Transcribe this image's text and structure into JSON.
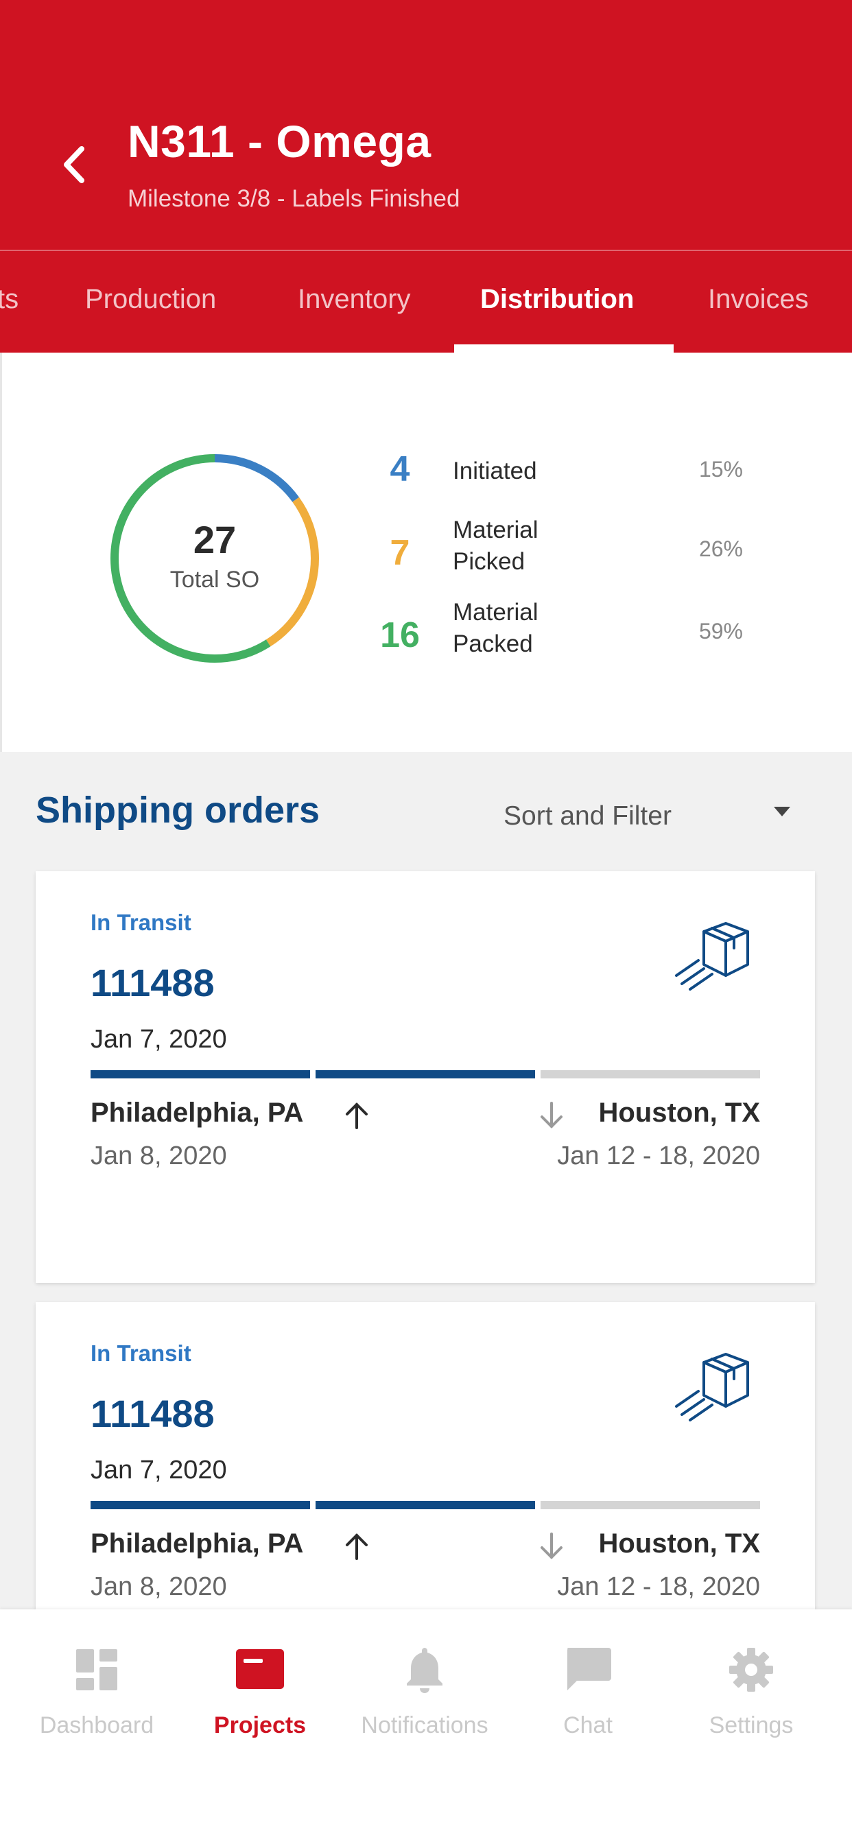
{
  "header": {
    "title": "N311 - Omega",
    "subtitle": "Milestone 3/8 - Labels Finished"
  },
  "tabs": [
    {
      "label": "ts"
    },
    {
      "label": "Production"
    },
    {
      "label": "Inventory"
    },
    {
      "label": "Distribution",
      "active": true
    },
    {
      "label": "Invoices"
    }
  ],
  "summary": {
    "total": "27",
    "total_label": "Total SO",
    "stats": [
      {
        "count": "4",
        "label": "Initiated",
        "percent": "15%",
        "color": "#3a7fc4"
      },
      {
        "count": "7",
        "label_line1": "Material",
        "label_line2": "Picked",
        "percent": "26%",
        "color": "#f0ad3c"
      },
      {
        "count": "16",
        "label_line1": "Material",
        "label_line2": "Packed",
        "percent": "59%",
        "color": "#43b062"
      }
    ]
  },
  "shipping": {
    "title": "Shipping orders",
    "sort_label": "Sort and Filter",
    "orders": [
      {
        "status": "In Transit",
        "id": "111488",
        "date": "Jan 7, 2020",
        "progress_segments_done": 2,
        "progress_segments_total": 3,
        "from_city": "Philadelphia, PA",
        "from_date": "Jan 8, 2020",
        "to_city": "Houston, TX",
        "to_date": "Jan 12 - 18, 2020"
      },
      {
        "status": "In Transit",
        "id": "111488",
        "date": "Jan 7, 2020",
        "progress_segments_done": 2,
        "progress_segments_total": 3,
        "from_city": "Philadelphia, PA",
        "from_date": "Jan 8, 2020",
        "to_city": "Houston, TX",
        "to_date": "Jan 12 - 18, 2020"
      }
    ]
  },
  "bottom_nav": [
    {
      "label": "Dashboard",
      "icon": "dashboard-icon"
    },
    {
      "label": "Projects",
      "icon": "projects-icon",
      "active": true
    },
    {
      "label": "Notifications",
      "icon": "bell-icon"
    },
    {
      "label": "Chat",
      "icon": "chat-icon"
    },
    {
      "label": "Settings",
      "icon": "gear-icon"
    }
  ],
  "colors": {
    "brand_red": "#cf1322",
    "navy": "#0f4a85",
    "status_blue": "#2f78c4"
  }
}
